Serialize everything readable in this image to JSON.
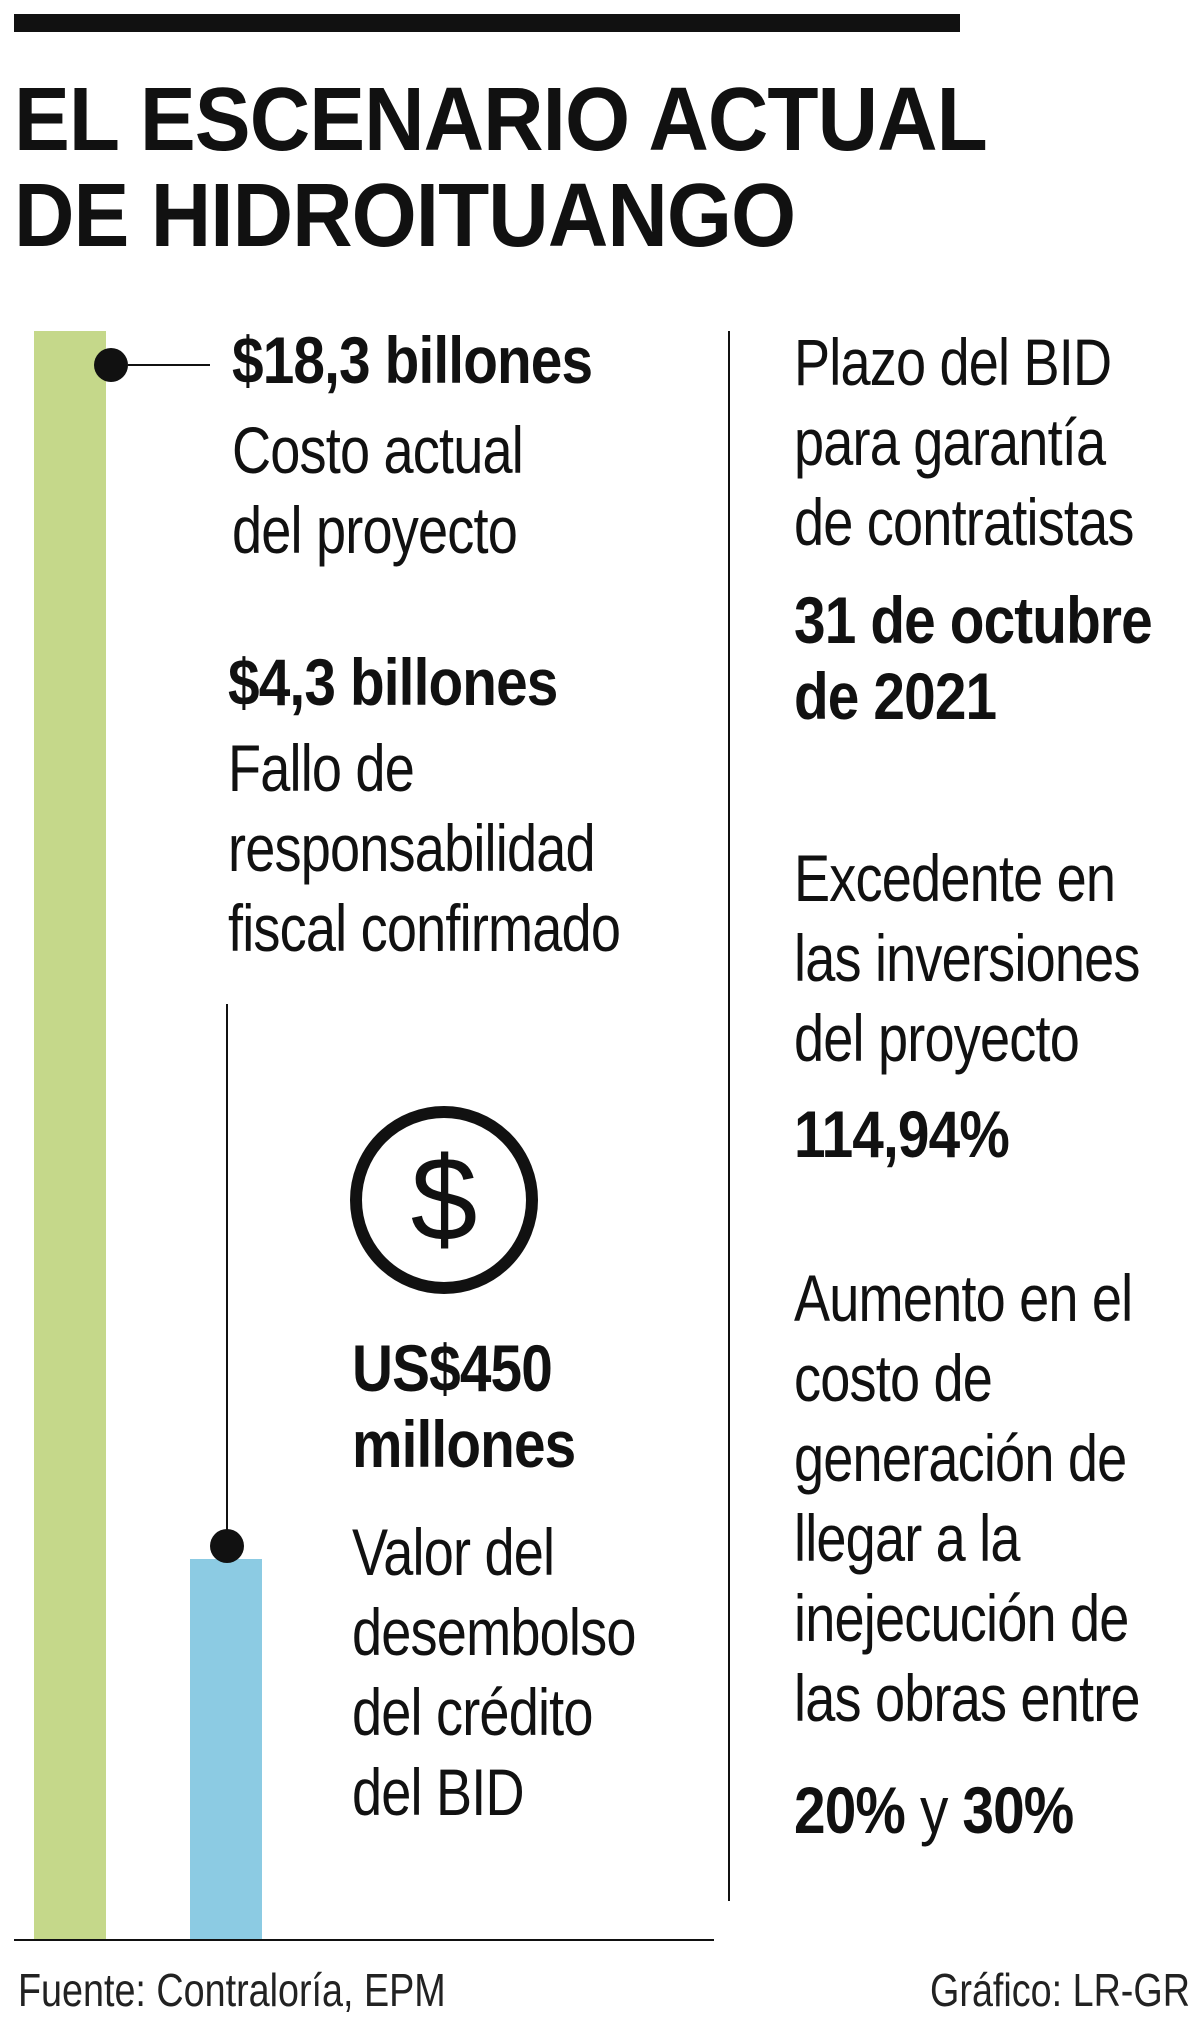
{
  "title": {
    "line1": "EL ESCENARIO ACTUAL",
    "line2": "DE HIDROITUANGO"
  },
  "chart_data": {
    "type": "bar",
    "categories": [
      "Costo actual del proyecto",
      "Valor del desembolso del crédito del BID"
    ],
    "values": [
      18.3,
      0.45
    ],
    "value_labels": [
      "$18,3 billones",
      "US$450 millones"
    ],
    "colors": [
      "#c5d88a",
      "#8ccbe3"
    ]
  },
  "left": {
    "cost": {
      "value": "$18,3 billones",
      "line1": "Costo actual",
      "line2": "del proyecto"
    },
    "fallo": {
      "value": "$4,3 billones",
      "line1": "Fallo de",
      "line2": "responsabilidad",
      "line3": "fiscal confirmado"
    },
    "credito": {
      "value_line1": "US$450",
      "value_line2": "millones",
      "line1": "Valor del",
      "line2": "desembolso",
      "line3": "del crédito",
      "line4": "del BID"
    },
    "icon": "dollar-circle-icon"
  },
  "right": {
    "plazo": {
      "line1": "Plazo del BID",
      "line2": "para garantía",
      "line3": "de contratistas",
      "value_line1": "31 de octubre",
      "value_line2": "de 2021"
    },
    "excedente": {
      "line1": "Excedente en",
      "line2": "las inversiones",
      "line3": "del proyecto",
      "value": "114,94%"
    },
    "aumento": {
      "line1": "Aumento en el",
      "line2": "costo de",
      "line3": "generación de",
      "line4": "llegar a la",
      "line5": "inejecución de",
      "line6": "las obras entre",
      "value_a": "20%",
      "connector": "y",
      "value_b": "30%"
    }
  },
  "footer": {
    "source": "Fuente: Contraloría, EPM",
    "credit": "Gráfico: LR-GR"
  }
}
